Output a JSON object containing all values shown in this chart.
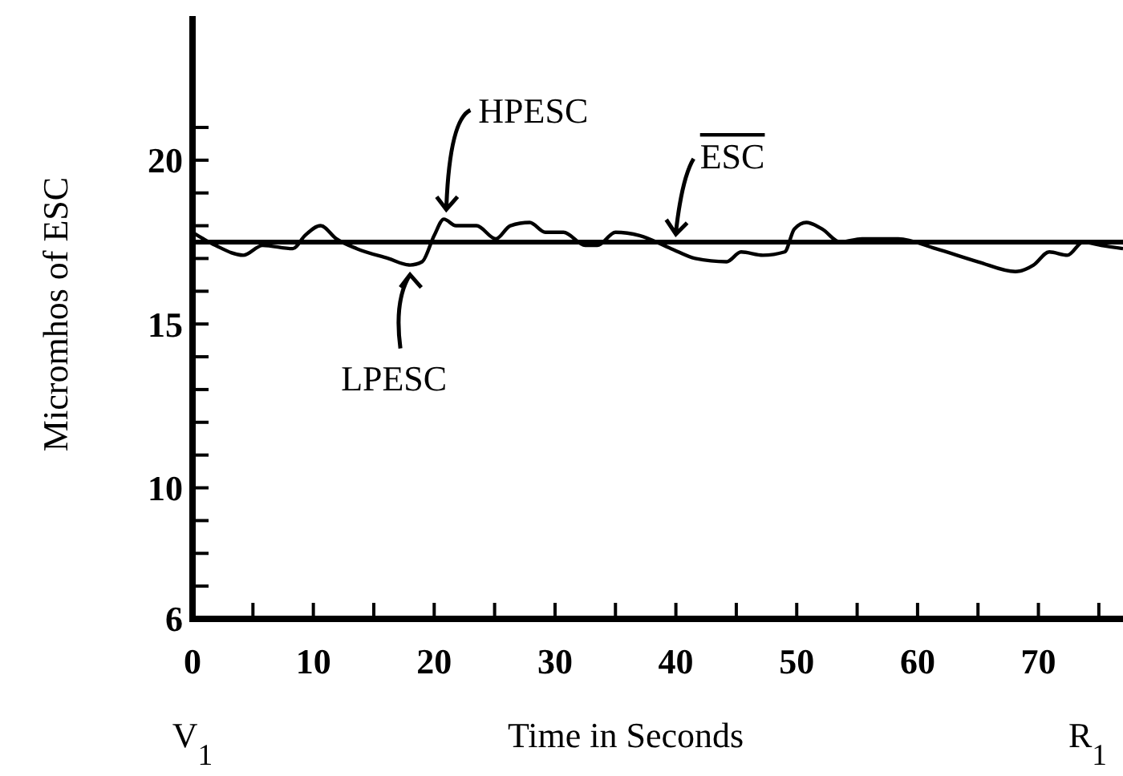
{
  "chart_data": {
    "type": "line",
    "xlabel": "Time in Seconds",
    "ylabel": "Micromhos of ESC",
    "x": [
      0,
      1.9,
      4.2,
      5.8,
      8.3,
      9.3,
      10.6,
      11.9,
      13.6,
      16.2,
      18.0,
      19.0,
      20.0,
      20.8,
      21.8,
      23.5,
      25.1,
      26.3,
      27.9,
      29.2,
      30.7,
      32.5,
      33.5,
      35.0,
      37.0,
      39.6,
      41.6,
      44.2,
      45.4,
      47.2,
      49.0,
      49.8,
      50.8,
      52.1,
      53.6,
      55.4,
      58.4,
      61.5,
      65.0,
      68.1,
      69.6,
      70.9,
      72.4,
      73.7,
      75.2,
      77
    ],
    "series": [
      {
        "color": "#000000",
        "values": [
          17.8,
          17.4,
          17.1,
          17.4,
          17.3,
          17.7,
          18.0,
          17.6,
          17.3,
          17.0,
          16.8,
          16.9,
          17.7,
          18.2,
          18.0,
          18.0,
          17.6,
          18.0,
          18.1,
          17.8,
          17.8,
          17.4,
          17.4,
          17.8,
          17.7,
          17.3,
          17.0,
          16.9,
          17.2,
          17.1,
          17.2,
          17.9,
          18.1,
          17.9,
          17.5,
          17.6,
          17.6,
          17.3,
          16.9,
          16.6,
          16.8,
          17.2,
          17.1,
          17.5,
          17.4,
          17.3
        ]
      }
    ],
    "xlim": [
      0,
      77
    ],
    "ylim": [
      6,
      24.4
    ],
    "xticks": [
      0,
      {
        "value": 5,
        "label": null
      },
      10,
      {
        "value": 15,
        "label": null
      },
      20,
      {
        "value": 25,
        "label": null
      },
      30,
      {
        "value": 35,
        "label": null
      },
      40,
      {
        "value": 45,
        "label": null
      },
      50,
      {
        "value": 55,
        "label": null
      },
      60,
      {
        "value": 65,
        "label": null
      },
      70,
      {
        "value": 75,
        "label": null
      }
    ],
    "yticks": [
      6,
      {
        "value": 7,
        "label": null
      },
      {
        "value": 8,
        "label": null
      },
      {
        "value": 9,
        "label": null
      },
      10,
      {
        "value": 11,
        "label": null
      },
      {
        "value": 12,
        "label": null
      },
      {
        "value": 13,
        "label": null
      },
      {
        "value": 14,
        "label": null
      },
      15,
      {
        "value": 16,
        "label": null
      },
      {
        "value": 17,
        "label": null
      },
      {
        "value": 18,
        "label": null
      },
      {
        "value": 19,
        "label": null
      },
      20,
      {
        "value": 21,
        "label": null
      }
    ],
    "ref_lines": [
      {
        "axis": "y",
        "value": 17.5,
        "label": "ESC"
      }
    ],
    "annotations": [
      {
        "text": "HPESC",
        "x": 21,
        "y": 18.2
      },
      {
        "text": "LPESC",
        "x": 18,
        "y": 16.8
      },
      "V$_{1}$",
      "R$_{1}$"
    ],
    "grid": false,
    "marker": "none",
    "line_style": "solid"
  }
}
